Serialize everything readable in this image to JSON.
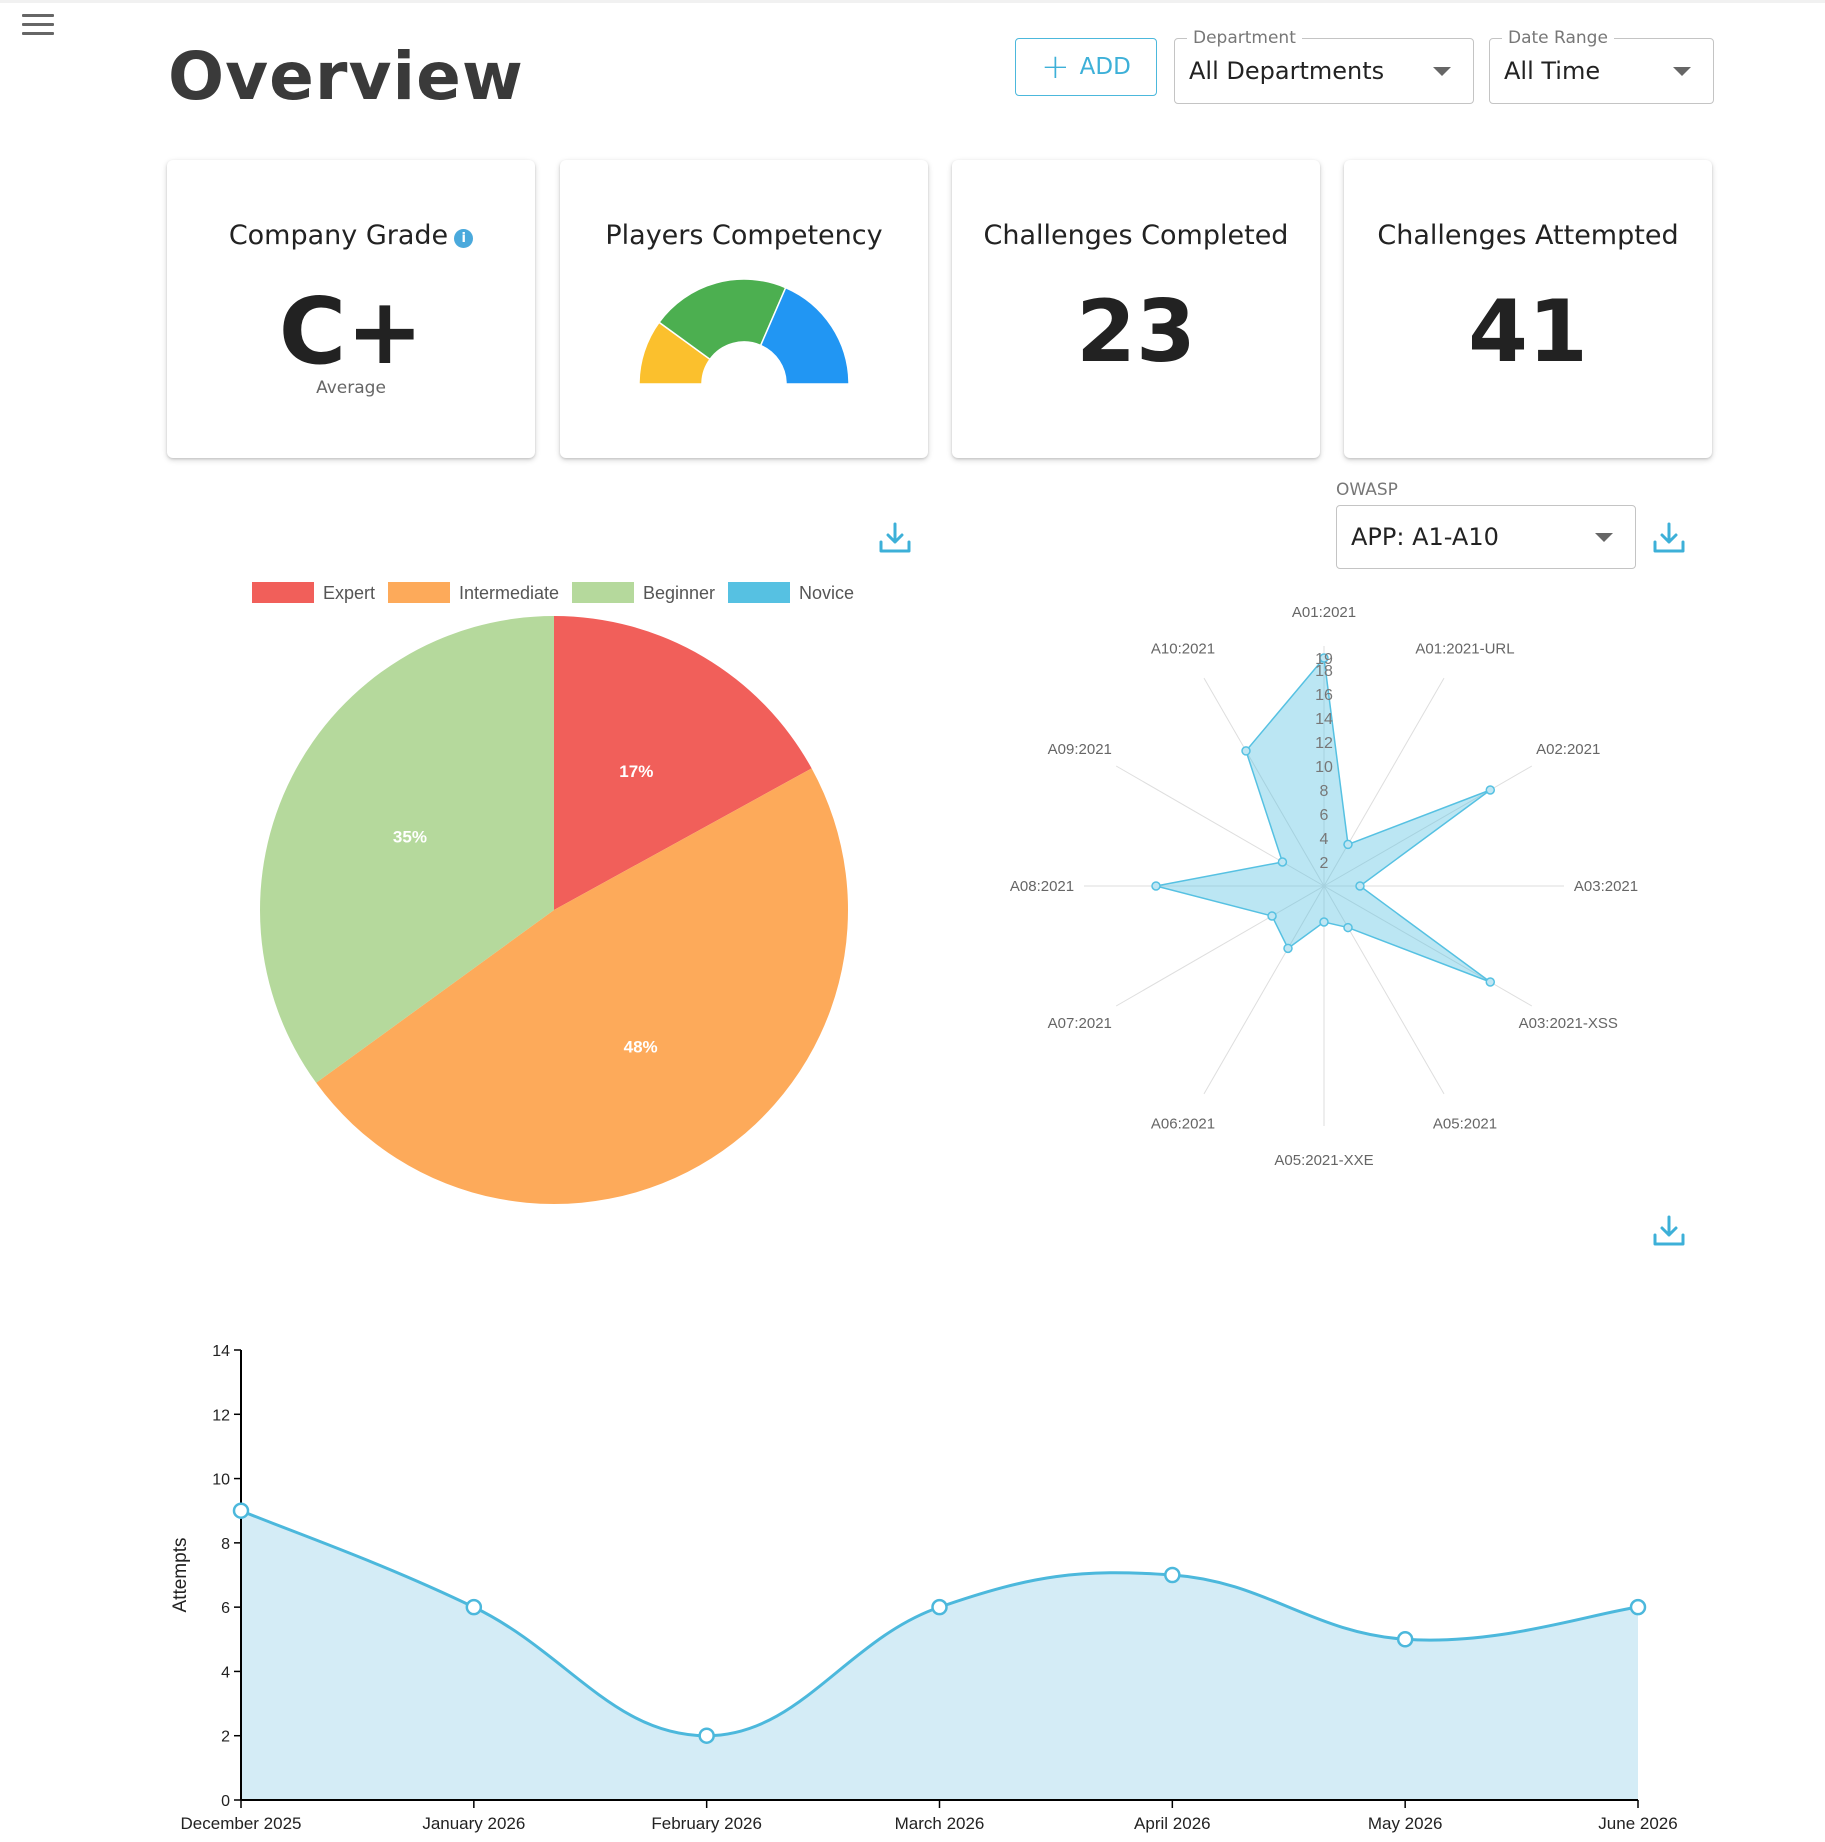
{
  "header": {
    "title": "Overview",
    "add_label": "ADD",
    "department": {
      "label": "Department",
      "value": "All Departments"
    },
    "date_range": {
      "label": "Date Range",
      "value": "All Time"
    }
  },
  "cards": {
    "company_grade": {
      "title": "Company Grade",
      "value": "C+",
      "subtitle": "Average"
    },
    "players_competency": {
      "title": "Players Competency"
    },
    "challenges_completed": {
      "title": "Challenges Completed",
      "value": "23"
    },
    "challenges_attempted": {
      "title": "Challenges Attempted",
      "value": "41"
    }
  },
  "owasp": {
    "label": "OWASP",
    "value": "APP: A1-A10"
  },
  "colors": {
    "accent": "#4cb8dc",
    "expert": "#f15f5a",
    "intermediate": "#fdaa5a",
    "beginner": "#b5d99c",
    "novice": "#56c1e2",
    "gauge_low": "#fbc02d",
    "gauge_mid": "#4caf50",
    "gauge_high": "#2196f3"
  },
  "chart_data": [
    {
      "type": "gauge",
      "segments": [
        {
          "color": "#fbc02d",
          "value": 20
        },
        {
          "color": "#4caf50",
          "value": 43
        },
        {
          "color": "#2196f3",
          "value": 37
        }
      ]
    },
    {
      "type": "pie",
      "legend": [
        "Expert",
        "Intermediate",
        "Beginner",
        "Novice"
      ],
      "slices": [
        {
          "name": "Expert",
          "value": 17,
          "label": "17%"
        },
        {
          "name": "Intermediate",
          "value": 48,
          "label": "48%"
        },
        {
          "name": "Beginner",
          "value": 35,
          "label": "35%"
        },
        {
          "name": "Novice",
          "value": 0,
          "label": ""
        }
      ],
      "legend_position": "top"
    },
    {
      "type": "radar",
      "axes": [
        "A01:2021",
        "A01:2021-URL",
        "A02:2021",
        "A03:2021",
        "A03:2021-XSS",
        "A05:2021",
        "A05:2021-XXE",
        "A06:2021",
        "A07:2021",
        "A08:2021",
        "A09:2021",
        "A10:2021"
      ],
      "values": [
        19,
        4,
        16,
        3,
        16,
        4,
        3,
        6,
        5,
        14,
        4,
        13
      ],
      "max": 20,
      "ticks": [
        "2",
        "4",
        "6",
        "8",
        "10",
        "12",
        "14",
        "16",
        "18",
        "19"
      ]
    },
    {
      "type": "area",
      "x": [
        "December 2025",
        "January 2026",
        "February 2026",
        "March 2026",
        "April 2026",
        "May 2026",
        "June 2026"
      ],
      "values": [
        9,
        6,
        2,
        6,
        7,
        5,
        6
      ],
      "ylabel": "Attempts",
      "ylim": [
        0,
        14
      ],
      "yticks": [
        0,
        2,
        4,
        6,
        8,
        10,
        12,
        14
      ]
    }
  ]
}
